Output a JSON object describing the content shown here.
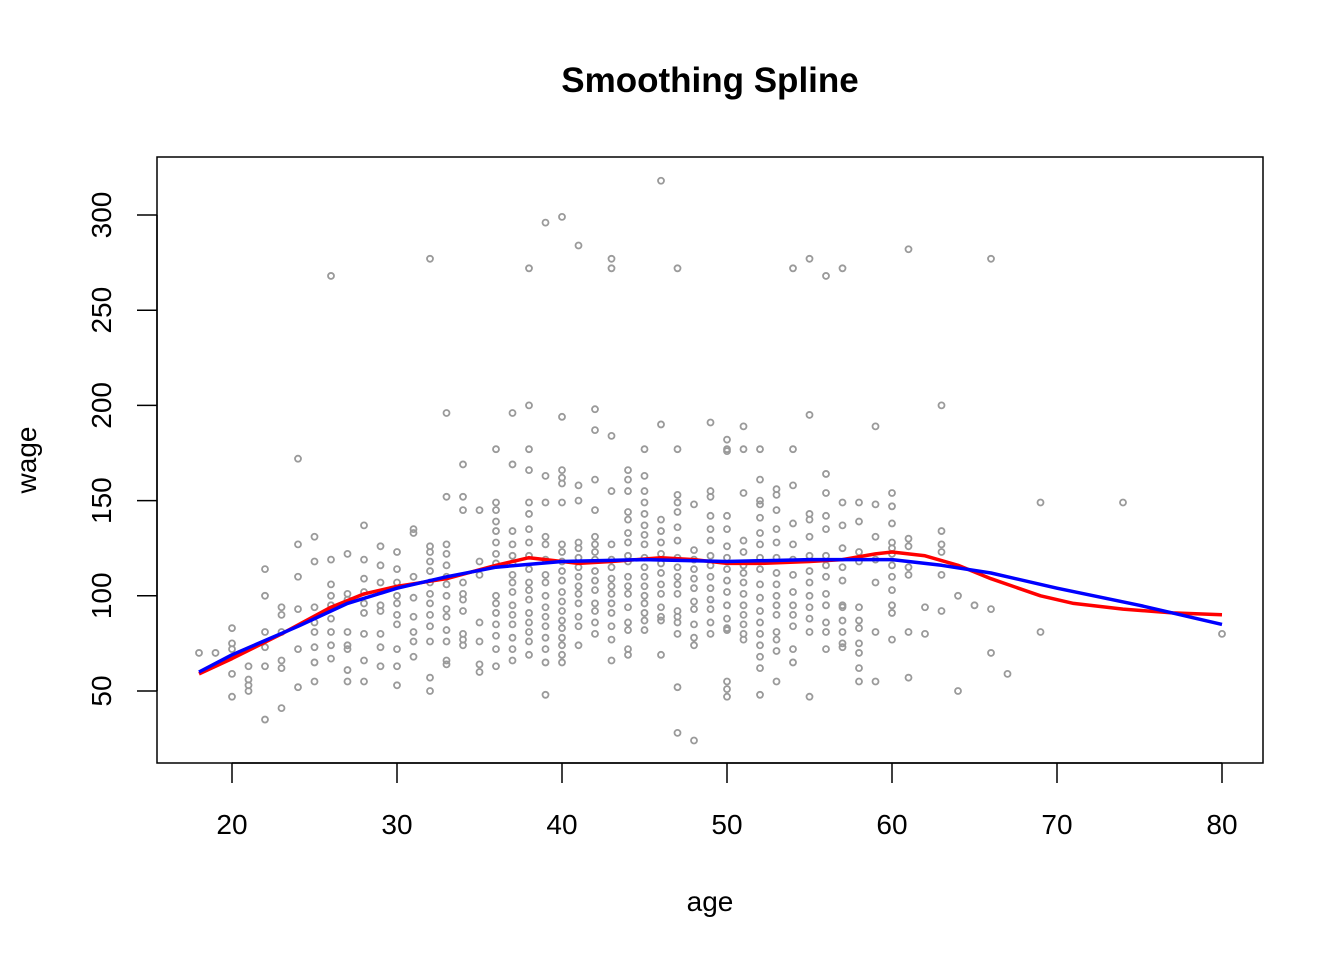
{
  "chart_data": {
    "type": "scatter",
    "title": "Smoothing Spline",
    "xlabel": "age",
    "ylabel": "wage",
    "xlim": [
      18,
      80
    ],
    "ylim": [
      24,
      318
    ],
    "x_ticks": [
      20,
      30,
      40,
      50,
      60,
      70,
      80
    ],
    "y_ticks": [
      50,
      100,
      150,
      200,
      250,
      300
    ],
    "x_tick_labels": [
      "20",
      "30",
      "40",
      "50",
      "60",
      "70",
      "80"
    ],
    "y_tick_labels": [
      "50",
      "100",
      "150",
      "200",
      "250",
      "300"
    ],
    "grid": false,
    "colors": {
      "points": "#9a9a9a",
      "spline_a": "#ff0000",
      "spline_b": "#0000ff"
    },
    "points_by_age": [
      [
        18,
        [
          70
        ]
      ],
      [
        19,
        [
          70
        ]
      ],
      [
        20,
        [
          83,
          75,
          72,
          59,
          47
        ]
      ],
      [
        21,
        [
          63,
          56,
          53,
          50
        ]
      ],
      [
        22,
        [
          114,
          100,
          81,
          73,
          63,
          35
        ]
      ],
      [
        23,
        [
          94,
          90,
          81,
          66,
          62,
          41
        ]
      ],
      [
        24,
        [
          172,
          127,
          110,
          93,
          72,
          52
        ]
      ],
      [
        25,
        [
          131,
          118,
          94,
          86,
          81,
          73,
          65,
          55
        ]
      ],
      [
        26,
        [
          268,
          119,
          106,
          100,
          95,
          88,
          81,
          74,
          67
        ]
      ],
      [
        27,
        [
          122,
          101,
          98,
          81,
          74,
          72,
          61,
          55
        ]
      ],
      [
        28,
        [
          137,
          119,
          109,
          102,
          96,
          91,
          80,
          66,
          55
        ]
      ],
      [
        29,
        [
          126,
          116,
          107,
          95,
          92,
          80,
          73,
          63
        ]
      ],
      [
        30,
        [
          123,
          114,
          107,
          100,
          96,
          90,
          85,
          72,
          63,
          53
        ]
      ],
      [
        31,
        [
          135,
          133,
          110,
          99,
          89,
          81,
          76,
          68
        ]
      ],
      [
        32,
        [
          277,
          126,
          123,
          118,
          113,
          107,
          101,
          96,
          90,
          84,
          76,
          57,
          50
        ]
      ],
      [
        33,
        [
          196,
          152,
          127,
          122,
          116,
          110,
          106,
          100,
          93,
          89,
          82,
          76,
          66,
          64
        ]
      ],
      [
        34,
        [
          169,
          152,
          145,
          107,
          101,
          98,
          92,
          80,
          77,
          74
        ]
      ],
      [
        35,
        [
          145,
          118,
          111,
          86,
          76,
          64,
          60
        ]
      ],
      [
        36,
        [
          177,
          149,
          145,
          139,
          134,
          128,
          122,
          117,
          100,
          96,
          91,
          85,
          79,
          72,
          63
        ]
      ],
      [
        37,
        [
          196,
          169,
          134,
          127,
          121,
          117,
          111,
          107,
          102,
          95,
          90,
          85,
          78,
          72,
          66
        ]
      ],
      [
        38,
        [
          272,
          200,
          177,
          166,
          149,
          143,
          135,
          128,
          121,
          114,
          107,
          103,
          98,
          91,
          86,
          81,
          76,
          69
        ]
      ],
      [
        39,
        [
          296,
          163,
          149,
          131,
          127,
          119,
          111,
          107,
          100,
          94,
          89,
          84,
          78,
          72,
          65,
          48
        ]
      ],
      [
        40,
        [
          299,
          194,
          166,
          162,
          159,
          149,
          127,
          123,
          118,
          113,
          108,
          102,
          97,
          92,
          87,
          83,
          78,
          74,
          69,
          65
        ]
      ],
      [
        41,
        [
          284,
          158,
          150,
          128,
          125,
          120,
          115,
          110,
          105,
          101,
          96,
          89,
          84,
          74
        ]
      ],
      [
        42,
        [
          198,
          187,
          161,
          145,
          131,
          127,
          123,
          119,
          113,
          108,
          103,
          96,
          92,
          86,
          80
        ]
      ],
      [
        43,
        [
          277,
          272,
          184,
          155,
          127,
          119,
          115,
          109,
          105,
          101,
          96,
          91,
          84,
          77,
          66
        ]
      ],
      [
        44,
        [
          166,
          161,
          155,
          144,
          140,
          133,
          128,
          121,
          118,
          110,
          105,
          101,
          94,
          86,
          82,
          72,
          69
        ]
      ],
      [
        45,
        [
          177,
          163,
          155,
          149,
          143,
          137,
          132,
          127,
          120,
          115,
          110,
          105,
          100,
          96,
          91,
          87,
          82
        ]
      ],
      [
        46,
        [
          318,
          190,
          140,
          134,
          128,
          122,
          117,
          112,
          106,
          101,
          94,
          89,
          87,
          69
        ]
      ],
      [
        47,
        [
          272,
          177,
          153,
          149,
          144,
          136,
          129,
          120,
          115,
          110,
          106,
          101,
          92,
          89,
          86,
          80,
          52,
          28
        ]
      ],
      [
        48,
        [
          148,
          124,
          119,
          114,
          109,
          104,
          97,
          93,
          85,
          78,
          74,
          24
        ]
      ],
      [
        49,
        [
          191,
          155,
          152,
          142,
          135,
          129,
          121,
          116,
          110,
          104,
          98,
          93,
          86,
          80
        ]
      ],
      [
        50,
        [
          182,
          177,
          176,
          142,
          135,
          126,
          120,
          114,
          108,
          102,
          95,
          88,
          83,
          82,
          55,
          51,
          47
        ]
      ],
      [
        51,
        [
          189,
          177,
          154,
          129,
          123,
          116,
          112,
          107,
          101,
          95,
          90,
          85,
          80,
          77
        ]
      ],
      [
        52,
        [
          177,
          161,
          150,
          148,
          141,
          133,
          127,
          120,
          114,
          106,
          99,
          92,
          86,
          80,
          74,
          68,
          62,
          48
        ]
      ],
      [
        53,
        [
          156,
          153,
          145,
          135,
          128,
          120,
          112,
          106,
          100,
          95,
          90,
          81,
          77,
          71,
          55
        ]
      ],
      [
        54,
        [
          272,
          177,
          158,
          138,
          127,
          119,
          111,
          102,
          95,
          90,
          84,
          72,
          65
        ]
      ],
      [
        55,
        [
          277,
          195,
          143,
          140,
          131,
          121,
          113,
          107,
          100,
          94,
          88,
          81,
          47
        ]
      ],
      [
        56,
        [
          268,
          164,
          154,
          142,
          135,
          121,
          116,
          110,
          101,
          95,
          86,
          81,
          72
        ]
      ],
      [
        57,
        [
          272,
          149,
          137,
          125,
          115,
          108,
          95,
          94,
          87,
          81,
          75,
          73
        ]
      ],
      [
        58,
        [
          149,
          139,
          123,
          118,
          94,
          87,
          83,
          75,
          70,
          62,
          55
        ]
      ],
      [
        59,
        [
          189,
          148,
          131,
          119,
          107,
          81,
          55
        ]
      ],
      [
        60,
        [
          154,
          147,
          138,
          128,
          125,
          122,
          116,
          110,
          103,
          95,
          91,
          77
        ]
      ],
      [
        61,
        [
          282,
          130,
          126,
          115,
          111,
          81,
          57
        ]
      ],
      [
        62,
        [
          94,
          80
        ]
      ],
      [
        63,
        [
          200,
          134,
          127,
          123,
          111,
          92
        ]
      ],
      [
        64,
        [
          100,
          50
        ]
      ],
      [
        65,
        [
          95
        ]
      ],
      [
        66,
        [
          277,
          93,
          70
        ]
      ],
      [
        67,
        [
          59
        ]
      ],
      [
        69,
        [
          149,
          81
        ]
      ],
      [
        74,
        [
          149
        ]
      ],
      [
        80,
        [
          80
        ]
      ]
    ],
    "series": [
      {
        "name": "spline-red",
        "color": "#ff0000",
        "x": [
          18,
          20,
          23,
          26,
          28,
          30,
          33,
          36,
          38,
          40,
          41,
          43,
          46,
          48,
          50,
          52,
          55,
          57,
          59,
          60,
          62,
          64,
          66,
          69,
          71,
          74,
          77,
          80
        ],
        "y": [
          59,
          67,
          80,
          94,
          101,
          105,
          109,
          116,
          120,
          118,
          117,
          118,
          120,
          119,
          117,
          117,
          118,
          119,
          122,
          123,
          121,
          116,
          109,
          100,
          96,
          93,
          91,
          90
        ]
      },
      {
        "name": "spline-blue",
        "color": "#0000ff",
        "x": [
          18,
          20,
          24,
          27,
          30,
          33,
          36,
          40,
          45,
          50,
          55,
          60,
          63,
          66,
          70,
          75,
          80
        ],
        "y": [
          60,
          69,
          84,
          96,
          104,
          110,
          115,
          118,
          119,
          118,
          119,
          119,
          116,
          112,
          104,
          95,
          85
        ]
      }
    ]
  }
}
